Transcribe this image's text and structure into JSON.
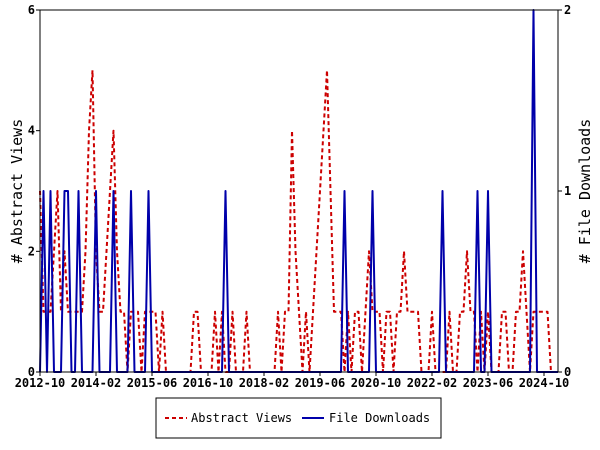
{
  "chart_data": {
    "type": "line",
    "x_tick_labels": [
      "2012-10",
      "2014-02",
      "2015-06",
      "2016-10",
      "2018-02",
      "2019-06",
      "2020-10",
      "2022-02",
      "2023-06",
      "2024-10"
    ],
    "y_left_label": "# Abstract Views",
    "y_right_label": "# File Downloads",
    "y_left_ticks": [
      "0",
      "2",
      "4",
      "6"
    ],
    "y_right_ticks": [
      "0",
      "1",
      "2"
    ],
    "y_left_range": [
      0,
      6
    ],
    "y_right_range": [
      0,
      2
    ],
    "x_range_months": [
      0,
      148
    ],
    "legend_position": "bottom-center",
    "grid": false,
    "series": [
      {
        "name": "Abstract Views",
        "axis": "left",
        "color": "#cc0000",
        "style": "dashed",
        "points": [
          [
            0,
            3
          ],
          [
            1,
            1
          ],
          [
            2,
            1
          ],
          [
            3,
            1
          ],
          [
            4,
            2
          ],
          [
            5,
            3
          ],
          [
            6,
            1
          ],
          [
            7,
            2
          ],
          [
            8,
            1
          ],
          [
            9,
            1
          ],
          [
            10,
            1
          ],
          [
            11,
            1
          ],
          [
            12,
            1
          ],
          [
            13,
            2
          ],
          [
            14,
            4
          ],
          [
            15,
            5
          ],
          [
            16,
            2
          ],
          [
            17,
            1
          ],
          [
            18,
            1
          ],
          [
            19,
            2
          ],
          [
            20,
            3
          ],
          [
            21,
            4
          ],
          [
            22,
            2
          ],
          [
            23,
            1
          ],
          [
            24,
            1
          ],
          [
            25,
            0
          ],
          [
            26,
            1
          ],
          [
            27,
            1
          ],
          [
            28,
            1
          ],
          [
            29,
            0
          ],
          [
            30,
            1
          ],
          [
            31,
            1
          ],
          [
            32,
            1
          ],
          [
            33,
            1
          ],
          [
            34,
            0
          ],
          [
            35,
            1
          ],
          [
            36,
            0
          ],
          [
            37,
            0
          ],
          [
            38,
            0
          ],
          [
            39,
            0
          ],
          [
            40,
            0
          ],
          [
            41,
            0
          ],
          [
            42,
            0
          ],
          [
            43,
            0
          ],
          [
            44,
            1
          ],
          [
            45,
            1
          ],
          [
            46,
            0
          ],
          [
            47,
            0
          ],
          [
            48,
            0
          ],
          [
            49,
            0
          ],
          [
            50,
            1
          ],
          [
            51,
            0
          ],
          [
            52,
            1
          ],
          [
            53,
            0
          ],
          [
            54,
            0
          ],
          [
            55,
            1
          ],
          [
            56,
            0
          ],
          [
            57,
            0
          ],
          [
            58,
            0
          ],
          [
            59,
            1
          ],
          [
            60,
            0
          ],
          [
            61,
            0
          ],
          [
            62,
            0
          ],
          [
            63,
            0
          ],
          [
            64,
            0
          ],
          [
            65,
            0
          ],
          [
            66,
            0
          ],
          [
            67,
            0
          ],
          [
            68,
            1
          ],
          [
            69,
            0
          ],
          [
            70,
            1
          ],
          [
            71,
            1
          ],
          [
            72,
            4
          ],
          [
            73,
            2
          ],
          [
            74,
            1
          ],
          [
            75,
            0
          ],
          [
            76,
            1
          ],
          [
            77,
            0
          ],
          [
            78,
            1
          ],
          [
            79,
            2
          ],
          [
            80,
            3
          ],
          [
            81,
            4
          ],
          [
            82,
            5
          ],
          [
            83,
            3
          ],
          [
            84,
            1
          ],
          [
            85,
            1
          ],
          [
            86,
            1
          ],
          [
            87,
            0
          ],
          [
            88,
            1
          ],
          [
            89,
            0
          ],
          [
            90,
            1
          ],
          [
            91,
            1
          ],
          [
            92,
            0
          ],
          [
            93,
            1
          ],
          [
            94,
            2
          ],
          [
            95,
            1
          ],
          [
            96,
            1
          ],
          [
            97,
            1
          ],
          [
            98,
            0
          ],
          [
            99,
            1
          ],
          [
            100,
            1
          ],
          [
            101,
            0
          ],
          [
            102,
            1
          ],
          [
            103,
            1
          ],
          [
            104,
            2
          ],
          [
            105,
            1
          ],
          [
            106,
            1
          ],
          [
            107,
            1
          ],
          [
            108,
            1
          ],
          [
            109,
            0
          ],
          [
            110,
            0
          ],
          [
            111,
            0
          ],
          [
            112,
            1
          ],
          [
            113,
            0
          ],
          [
            114,
            0
          ],
          [
            115,
            0
          ],
          [
            116,
            0
          ],
          [
            117,
            1
          ],
          [
            118,
            0
          ],
          [
            119,
            0
          ],
          [
            120,
            1
          ],
          [
            121,
            1
          ],
          [
            122,
            2
          ],
          [
            123,
            1
          ],
          [
            124,
            1
          ],
          [
            125,
            0
          ],
          [
            126,
            1
          ],
          [
            127,
            0
          ],
          [
            128,
            1
          ],
          [
            129,
            0
          ],
          [
            130,
            0
          ],
          [
            131,
            0
          ],
          [
            132,
            1
          ],
          [
            133,
            1
          ],
          [
            134,
            0
          ],
          [
            135,
            0
          ],
          [
            136,
            1
          ],
          [
            137,
            1
          ],
          [
            138,
            2
          ],
          [
            139,
            1
          ],
          [
            140,
            0
          ],
          [
            141,
            1
          ],
          [
            142,
            1
          ],
          [
            143,
            1
          ],
          [
            144,
            1
          ],
          [
            145,
            1
          ],
          [
            146,
            0
          ],
          [
            147,
            0
          ],
          [
            148,
            0
          ]
        ]
      },
      {
        "name": "File Downloads",
        "axis": "right",
        "color": "#0000aa",
        "style": "solid",
        "points": [
          [
            0,
            0
          ],
          [
            1,
            1
          ],
          [
            2,
            0
          ],
          [
            3,
            1
          ],
          [
            4,
            0
          ],
          [
            5,
            0
          ],
          [
            6,
            0
          ],
          [
            7,
            1
          ],
          [
            8,
            1
          ],
          [
            9,
            0
          ],
          [
            10,
            0
          ],
          [
            11,
            1
          ],
          [
            12,
            0
          ],
          [
            13,
            0
          ],
          [
            14,
            0
          ],
          [
            15,
            0
          ],
          [
            16,
            1
          ],
          [
            17,
            0
          ],
          [
            18,
            0
          ],
          [
            19,
            0
          ],
          [
            20,
            0
          ],
          [
            21,
            1
          ],
          [
            22,
            0
          ],
          [
            23,
            0
          ],
          [
            24,
            0
          ],
          [
            25,
            0
          ],
          [
            26,
            1
          ],
          [
            27,
            0
          ],
          [
            28,
            0
          ],
          [
            29,
            0
          ],
          [
            30,
            0
          ],
          [
            31,
            1
          ],
          [
            32,
            0
          ],
          [
            33,
            0
          ],
          [
            34,
            0
          ],
          [
            35,
            0
          ],
          [
            36,
            0
          ],
          [
            37,
            0
          ],
          [
            38,
            0
          ],
          [
            39,
            0
          ],
          [
            40,
            0
          ],
          [
            41,
            0
          ],
          [
            42,
            0
          ],
          [
            43,
            0
          ],
          [
            44,
            0
          ],
          [
            45,
            0
          ],
          [
            46,
            0
          ],
          [
            47,
            0
          ],
          [
            48,
            0
          ],
          [
            49,
            0
          ],
          [
            50,
            0
          ],
          [
            51,
            0
          ],
          [
            52,
            0
          ],
          [
            53,
            1
          ],
          [
            54,
            0
          ],
          [
            55,
            0
          ],
          [
            56,
            0
          ],
          [
            57,
            0
          ],
          [
            58,
            0
          ],
          [
            59,
            0
          ],
          [
            60,
            0
          ],
          [
            61,
            0
          ],
          [
            62,
            0
          ],
          [
            63,
            0
          ],
          [
            64,
            0
          ],
          [
            65,
            0
          ],
          [
            66,
            0
          ],
          [
            67,
            0
          ],
          [
            68,
            0
          ],
          [
            69,
            0
          ],
          [
            70,
            0
          ],
          [
            71,
            0
          ],
          [
            72,
            0
          ],
          [
            73,
            0
          ],
          [
            74,
            0
          ],
          [
            75,
            0
          ],
          [
            76,
            0
          ],
          [
            77,
            0
          ],
          [
            78,
            0
          ],
          [
            79,
            0
          ],
          [
            80,
            0
          ],
          [
            81,
            0
          ],
          [
            82,
            0
          ],
          [
            83,
            0
          ],
          [
            84,
            0
          ],
          [
            85,
            0
          ],
          [
            86,
            0
          ],
          [
            87,
            1
          ],
          [
            88,
            0
          ],
          [
            89,
            0
          ],
          [
            90,
            0
          ],
          [
            91,
            0
          ],
          [
            92,
            0
          ],
          [
            93,
            0
          ],
          [
            94,
            0
          ],
          [
            95,
            1
          ],
          [
            96,
            0
          ],
          [
            97,
            0
          ],
          [
            98,
            0
          ],
          [
            99,
            0
          ],
          [
            100,
            0
          ],
          [
            101,
            0
          ],
          [
            102,
            0
          ],
          [
            103,
            0
          ],
          [
            104,
            0
          ],
          [
            105,
            0
          ],
          [
            106,
            0
          ],
          [
            107,
            0
          ],
          [
            108,
            0
          ],
          [
            109,
            0
          ],
          [
            110,
            0
          ],
          [
            111,
            0
          ],
          [
            112,
            0
          ],
          [
            113,
            0
          ],
          [
            114,
            0
          ],
          [
            115,
            1
          ],
          [
            116,
            0
          ],
          [
            117,
            0
          ],
          [
            118,
            0
          ],
          [
            119,
            0
          ],
          [
            120,
            0
          ],
          [
            121,
            0
          ],
          [
            122,
            0
          ],
          [
            123,
            0
          ],
          [
            124,
            0
          ],
          [
            125,
            1
          ],
          [
            126,
            0
          ],
          [
            127,
            0
          ],
          [
            128,
            1
          ],
          [
            129,
            0
          ],
          [
            130,
            0
          ],
          [
            131,
            0
          ],
          [
            132,
            0
          ],
          [
            133,
            0
          ],
          [
            134,
            0
          ],
          [
            135,
            0
          ],
          [
            136,
            0
          ],
          [
            137,
            0
          ],
          [
            138,
            0
          ],
          [
            139,
            0
          ],
          [
            140,
            0
          ],
          [
            141,
            2
          ],
          [
            142,
            0
          ],
          [
            143,
            0
          ],
          [
            144,
            0
          ],
          [
            145,
            0
          ],
          [
            146,
            0
          ],
          [
            147,
            0
          ],
          [
            148,
            0
          ]
        ]
      }
    ]
  }
}
